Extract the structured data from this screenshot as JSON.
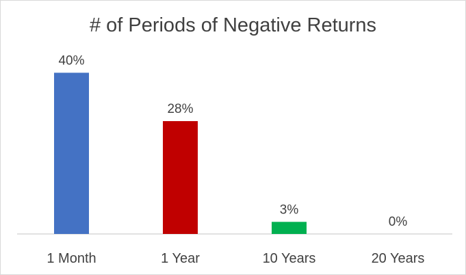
{
  "chart_data": {
    "type": "bar",
    "title": "# of Periods of Negative Returns",
    "categories": [
      "1 Month",
      "1 Year",
      "10 Years",
      "20 Years"
    ],
    "values": [
      40,
      28,
      3,
      0
    ],
    "data_labels": [
      "40%",
      "28%",
      "3%",
      "0%"
    ],
    "colors": [
      "#4472c4",
      "#c00000",
      "#00b050",
      "#808080"
    ],
    "ylim": [
      0,
      46
    ],
    "grid": false,
    "legend": "none"
  }
}
